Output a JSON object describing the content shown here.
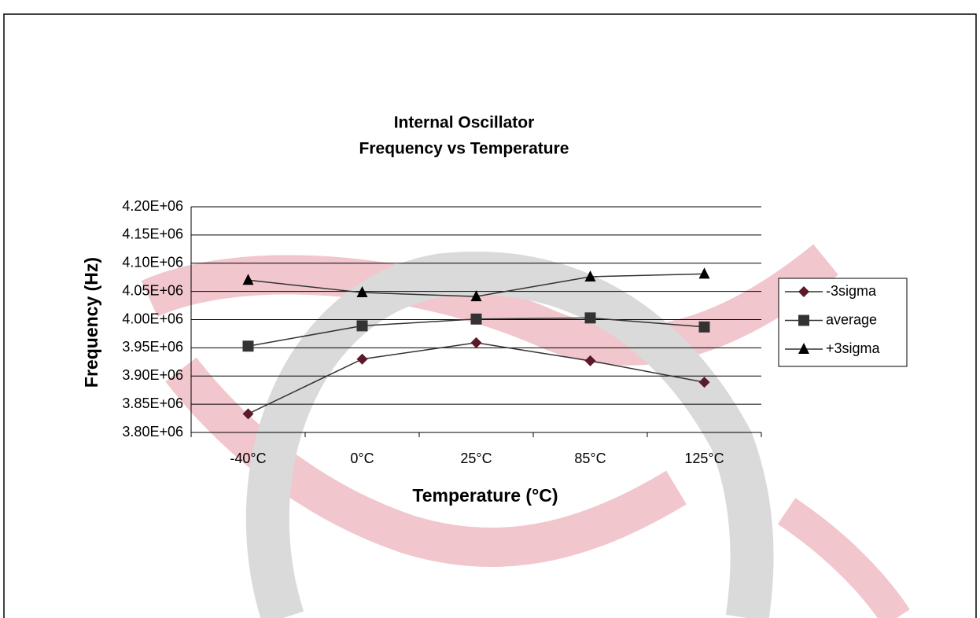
{
  "chart_data": {
    "type": "line",
    "title": [
      "Internal Oscillator",
      "Frequency vs Temperature"
    ],
    "x_label": "Temperature (°C)",
    "y_label": "Frequency (Hz)",
    "categories": [
      "-40°C",
      "0°C",
      "25°C",
      "85°C",
      "125°C"
    ],
    "series": [
      {
        "name": "-3sigma",
        "color": "#5a1a2a",
        "marker": "diamond",
        "values": [
          3833000,
          3930000,
          3959000,
          3927000,
          3889000
        ]
      },
      {
        "name": "average",
        "color": "#333333",
        "marker": "square",
        "values": [
          3953000,
          3989000,
          4001000,
          4003000,
          3987000
        ]
      },
      {
        "name": "+3sigma",
        "color": "#000000",
        "marker": "triangle",
        "values": [
          4070000,
          4048000,
          4041000,
          4076000,
          4081000
        ]
      }
    ],
    "ylim": [
      3800000,
      4200000
    ],
    "yticks": [
      {
        "value": 3800000,
        "label": "3.80E+06"
      },
      {
        "value": 3850000,
        "label": "3.85E+06"
      },
      {
        "value": 3900000,
        "label": "3.90E+06"
      },
      {
        "value": 3950000,
        "label": "3.95E+06"
      },
      {
        "value": 4000000,
        "label": "4.00E+06"
      },
      {
        "value": 4050000,
        "label": "4.05E+06"
      },
      {
        "value": 4100000,
        "label": "4.10E+06"
      },
      {
        "value": 4150000,
        "label": "4.15E+06"
      },
      {
        "value": 4200000,
        "label": "4.20E+06"
      }
    ],
    "grid": true,
    "legend": "right"
  }
}
